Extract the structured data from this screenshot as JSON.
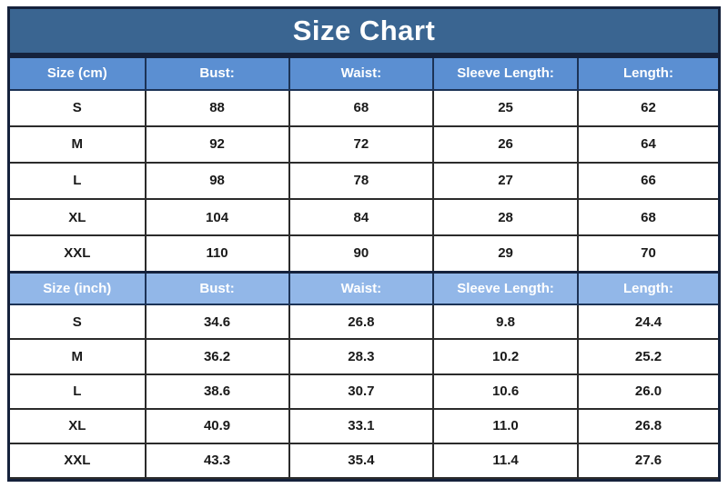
{
  "title": "Size Chart",
  "colors": {
    "banner_bg": "#3a6591",
    "header_cm_bg": "#5b8fd2",
    "header_inch_bg": "#92b7e8",
    "outer_border": "#15223c",
    "header_separator": "#1c3356",
    "body_border": "#2b2b2b",
    "header_text": "#ffffff",
    "cell_text": "#1a1a1a"
  },
  "chart_data": {
    "type": "table",
    "title": "Size Chart",
    "sections": [
      {
        "unit": "cm",
        "header": [
          "Size (cm)",
          "Bust:",
          "Waist:",
          "Sleeve Length:",
          "Length:"
        ],
        "rows": [
          [
            "S",
            "88",
            "68",
            "25",
            "62"
          ],
          [
            "M",
            "92",
            "72",
            "26",
            "64"
          ],
          [
            "L",
            "98",
            "78",
            "27",
            "66"
          ],
          [
            "XL",
            "104",
            "84",
            "28",
            "68"
          ],
          [
            "XXL",
            "110",
            "90",
            "29",
            "70"
          ]
        ]
      },
      {
        "unit": "inch",
        "header": [
          "Size (inch)",
          "Bust:",
          "Waist:",
          "Sleeve Length:",
          "Length:"
        ],
        "rows": [
          [
            "S",
            "34.6",
            "26.8",
            "9.8",
            "24.4"
          ],
          [
            "M",
            "36.2",
            "28.3",
            "10.2",
            "25.2"
          ],
          [
            "L",
            "38.6",
            "30.7",
            "10.6",
            "26.0"
          ],
          [
            "XL",
            "40.9",
            "33.1",
            "11.0",
            "26.8"
          ],
          [
            "XXL",
            "43.3",
            "35.4",
            "11.4",
            "27.6"
          ]
        ]
      }
    ]
  }
}
